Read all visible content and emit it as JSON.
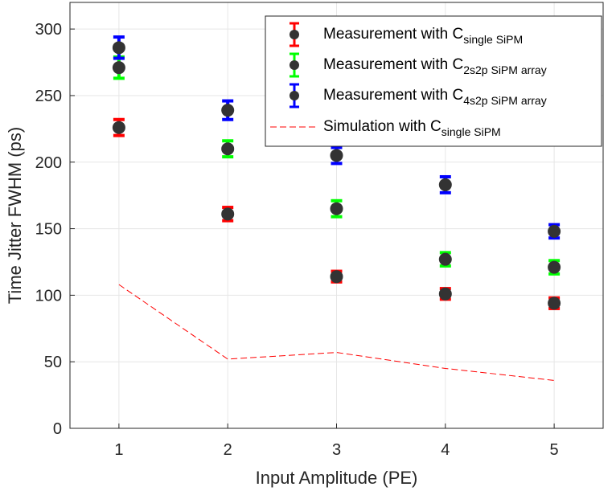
{
  "chart_data": {
    "type": "scatter",
    "xlabel": "Input Amplitude (PE)",
    "ylabel": "Time Jitter FWHM (ps)",
    "xlim": [
      0.55,
      5.45
    ],
    "ylim": [
      0,
      320
    ],
    "xticks": [
      1,
      2,
      3,
      4,
      5
    ],
    "yticks": [
      0,
      50,
      100,
      150,
      200,
      250,
      300
    ],
    "grid": true,
    "legend_position": "top-right",
    "series": [
      {
        "name_main": "Measurement with C",
        "name_sub": "single SiPM",
        "kind": "errorbar",
        "color": "#ff0000",
        "x": [
          1,
          2,
          3,
          4,
          5
        ],
        "y": [
          226,
          161,
          114,
          101,
          94
        ],
        "err": [
          6,
          5,
          4,
          4,
          4
        ]
      },
      {
        "name_main": "Measurement with C",
        "name_sub": "2s2p SiPM array",
        "kind": "errorbar",
        "color": "#00ff00",
        "x": [
          1,
          2,
          3,
          4,
          5
        ],
        "y": [
          271,
          210,
          165,
          127,
          121
        ],
        "err": [
          8,
          6,
          6,
          5,
          5
        ]
      },
      {
        "name_main": "Measurement with C",
        "name_sub": "4s2p SiPM array",
        "kind": "errorbar",
        "color": "#0000ff",
        "x": [
          1,
          2,
          3,
          4,
          5
        ],
        "y": [
          286,
          239,
          205,
          183,
          148
        ],
        "err": [
          8,
          7,
          6,
          6,
          5
        ]
      },
      {
        "name_main": "Simulation with C",
        "name_sub": "single SiPM",
        "kind": "line",
        "color": "#ff0000",
        "x": [
          1,
          2,
          3,
          4,
          5
        ],
        "y": [
          108,
          52,
          57,
          45,
          36
        ]
      }
    ],
    "marker_color": "#333333"
  }
}
